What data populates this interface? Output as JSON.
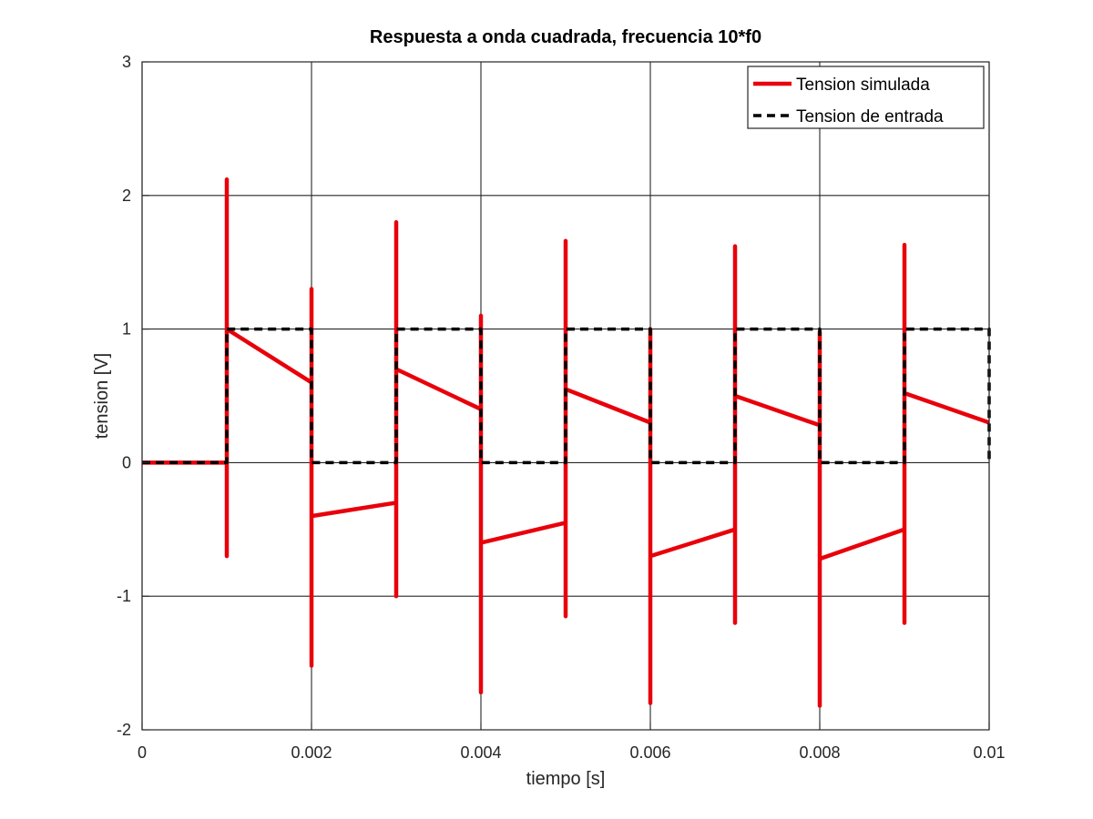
{
  "chart_data": {
    "type": "line",
    "title": "Respuesta a onda cuadrada, frecuencia 10*f0",
    "xlabel": "tiempo [s]",
    "ylabel": "tension [V]",
    "xlim": [
      0,
      0.01
    ],
    "ylim": [
      -2,
      3
    ],
    "x_ticks": [
      0,
      0.002,
      0.004,
      0.006,
      0.008,
      0.01
    ],
    "x_tick_labels": [
      "0",
      "0.002",
      "0.004",
      "0.006",
      "0.008",
      "0.01"
    ],
    "y_ticks": [
      -2,
      -1,
      0,
      1,
      2,
      3
    ],
    "y_tick_labels": [
      "-2",
      "-1",
      "0",
      "1",
      "2",
      "3"
    ],
    "grid": true,
    "legend_position": "top-right",
    "series": [
      {
        "name": "Tension simulada",
        "color": "#e8000b",
        "style": "solid",
        "points": [
          [
            0,
            0
          ],
          [
            0.001,
            0
          ],
          [
            0.001,
            -0.7
          ],
          [
            0.001,
            2.12
          ],
          [
            0.001,
            1.0
          ],
          [
            0.002,
            0.6
          ],
          [
            0.002,
            1.3
          ],
          [
            0.002,
            -1.52
          ],
          [
            0.002,
            -0.4
          ],
          [
            0.003,
            -0.3
          ],
          [
            0.003,
            -1.0
          ],
          [
            0.003,
            1.8
          ],
          [
            0.003,
            0.7
          ],
          [
            0.004,
            0.4
          ],
          [
            0.004,
            1.1
          ],
          [
            0.004,
            -1.72
          ],
          [
            0.004,
            -0.6
          ],
          [
            0.005,
            -0.45
          ],
          [
            0.005,
            -1.15
          ],
          [
            0.005,
            1.66
          ],
          [
            0.005,
            0.55
          ],
          [
            0.006,
            0.3
          ],
          [
            0.006,
            1.0
          ],
          [
            0.006,
            -1.8
          ],
          [
            0.006,
            -0.7
          ],
          [
            0.007,
            -0.5
          ],
          [
            0.007,
            -1.2
          ],
          [
            0.007,
            1.62
          ],
          [
            0.007,
            0.5
          ],
          [
            0.008,
            0.28
          ],
          [
            0.008,
            0.98
          ],
          [
            0.008,
            -1.82
          ],
          [
            0.008,
            -0.72
          ],
          [
            0.009,
            -0.5
          ],
          [
            0.009,
            -1.2
          ],
          [
            0.009,
            1.63
          ],
          [
            0.009,
            0.52
          ],
          [
            0.01,
            0.3
          ]
        ]
      },
      {
        "name": "Tension de entrada",
        "color": "#000000",
        "style": "dashed",
        "points": [
          [
            0,
            0
          ],
          [
            0.001,
            0
          ],
          [
            0.001,
            1
          ],
          [
            0.002,
            1
          ],
          [
            0.002,
            0
          ],
          [
            0.003,
            0
          ],
          [
            0.003,
            1
          ],
          [
            0.004,
            1
          ],
          [
            0.004,
            0
          ],
          [
            0.005,
            0
          ],
          [
            0.005,
            1
          ],
          [
            0.006,
            1
          ],
          [
            0.006,
            0
          ],
          [
            0.007,
            0
          ],
          [
            0.007,
            1
          ],
          [
            0.008,
            1
          ],
          [
            0.008,
            0
          ],
          [
            0.009,
            0
          ],
          [
            0.009,
            1
          ],
          [
            0.01,
            1
          ],
          [
            0.01,
            0
          ]
        ]
      }
    ]
  }
}
